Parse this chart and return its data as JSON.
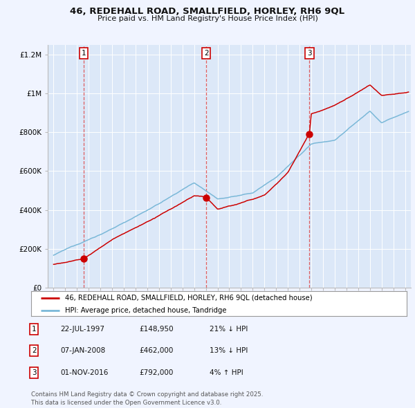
{
  "title": "46, REDEHALL ROAD, SMALLFIELD, HORLEY, RH6 9QL",
  "subtitle": "Price paid vs. HM Land Registry's House Price Index (HPI)",
  "plot_bg_color": "#dce8f8",
  "fig_bg_color": "#f0f4ff",
  "red_line_color": "#cc0000",
  "blue_line_color": "#7ab8d8",
  "grid_color": "#ffffff",
  "dashed_line_color": "#dd4444",
  "sale_points": [
    {
      "date_num": 1997.56,
      "price": 148950,
      "label": "1"
    },
    {
      "date_num": 2008.03,
      "price": 462000,
      "label": "2"
    },
    {
      "date_num": 2016.84,
      "price": 792000,
      "label": "3"
    }
  ],
  "legend_entries": [
    "46, REDEHALL ROAD, SMALLFIELD, HORLEY, RH6 9QL (detached house)",
    "HPI: Average price, detached house, Tandridge"
  ],
  "table_data": [
    {
      "num": "1",
      "date": "22-JUL-1997",
      "price": "£148,950",
      "hpi": "21% ↓ HPI"
    },
    {
      "num": "2",
      "date": "07-JAN-2008",
      "price": "£462,000",
      "hpi": "13% ↓ HPI"
    },
    {
      "num": "3",
      "date": "01-NOV-2016",
      "price": "£792,000",
      "hpi": "4% ↑ HPI"
    }
  ],
  "footer": "Contains HM Land Registry data © Crown copyright and database right 2025.\nThis data is licensed under the Open Government Licence v3.0.",
  "ylim": [
    0,
    1250000
  ],
  "yticks": [
    0,
    200000,
    400000,
    600000,
    800000,
    1000000,
    1200000
  ],
  "ylabels": [
    "£0",
    "£200K",
    "£400K",
    "£600K",
    "£800K",
    "£1M",
    "£1.2M"
  ],
  "xlim_start": 1994.5,
  "xlim_end": 2025.5
}
